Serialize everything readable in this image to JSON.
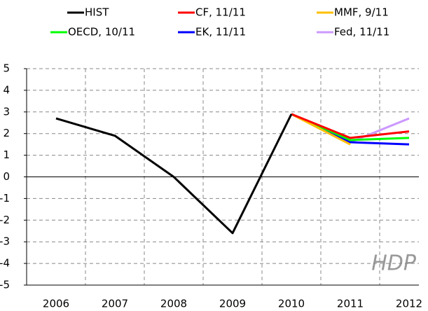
{
  "chart_data": {
    "type": "line",
    "categories": [
      "2006",
      "2007",
      "2008",
      "2009",
      "2010",
      "2011",
      "2012"
    ],
    "series": [
      {
        "name": "HIST",
        "color": "#000000",
        "values": [
          2.7,
          1.9,
          0.0,
          -2.6,
          2.9,
          null,
          null
        ]
      },
      {
        "name": "CF, 11/11",
        "color": "#ff0000",
        "values": [
          null,
          null,
          null,
          null,
          2.9,
          1.8,
          2.1
        ]
      },
      {
        "name": "MMF, 9/11",
        "color": "#ffc000",
        "values": [
          null,
          null,
          null,
          null,
          2.9,
          1.5,
          null
        ]
      },
      {
        "name": "OECD, 10/11",
        "color": "#00ff00",
        "values": [
          null,
          null,
          null,
          null,
          2.9,
          1.7,
          1.8
        ]
      },
      {
        "name": "EK, 11/11",
        "color": "#0000ff",
        "values": [
          null,
          null,
          null,
          null,
          2.9,
          1.6,
          1.5
        ]
      },
      {
        "name": "Fed, 11/11",
        "color": "#cc99ff",
        "values": [
          null,
          null,
          null,
          null,
          2.9,
          1.6,
          2.7
        ]
      }
    ],
    "annotation": "HDP",
    "ylim": [
      -5,
      5
    ],
    "yticks": [
      -5,
      -4,
      -3,
      -2,
      -1,
      0,
      1,
      2,
      3,
      4,
      5
    ],
    "grid": true
  }
}
